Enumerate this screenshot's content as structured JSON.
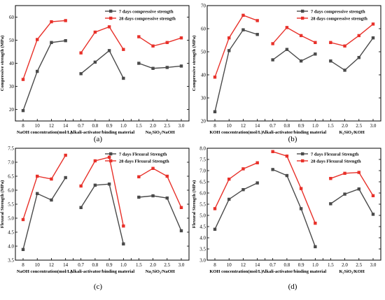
{
  "colors": {
    "series7": "#4a4a4a",
    "series28": "#e8312a",
    "axis": "#000000"
  },
  "chart_data": [
    {
      "type": "line",
      "panel_label": "(a)",
      "ylabel": "Compressive strength (MPa)",
      "ylim": [
        15,
        65
      ],
      "yticks": [
        "20",
        "30",
        "40",
        "50",
        "60"
      ],
      "legend_position": "top-right",
      "groups": [
        {
          "xlabel": "NaOH concentration(mol/L)",
          "categories": [
            "8",
            "10",
            "12",
            "14"
          ],
          "series": [
            {
              "name": "7 days compressive strength",
              "values": [
                19.5,
                36.5,
                49,
                49.8
              ]
            },
            {
              "name": "28 days compressive strength",
              "values": [
                33,
                50.3,
                58,
                58.5
              ]
            }
          ]
        },
        {
          "xlabel": "Alkali-activator/binding material",
          "categories": [
            "0.7",
            "0.8",
            "0.9",
            "1.0"
          ],
          "series": [
            {
              "name": "7 days compressive strength",
              "values": [
                35.5,
                40.5,
                45.5,
                33.5
              ]
            },
            {
              "name": "28 days compressive strength",
              "values": [
                44.5,
                53.5,
                55.8,
                46
              ]
            }
          ]
        },
        {
          "xlabel": "Na₂SiO₃/NaOH",
          "categories": [
            "1.5",
            "2.0",
            "2.5",
            "3.0"
          ],
          "series": [
            {
              "name": "7 days compressive strength",
              "values": [
                40,
                37.8,
                38.2,
                38.8
              ]
            },
            {
              "name": "28 days compressive strength",
              "values": [
                51.5,
                47.5,
                49,
                51
              ]
            }
          ]
        }
      ]
    },
    {
      "type": "line",
      "panel_label": "(b)",
      "ylabel": "Compressive strength (MPa)",
      "ylim": [
        20,
        70
      ],
      "yticks": [
        "20",
        "30",
        "40",
        "50",
        "60",
        "70"
      ],
      "legend_position": "top-right",
      "groups": [
        {
          "xlabel": "KOH concentration(mol/L)",
          "categories": [
            "8",
            "10",
            "12",
            "14"
          ],
          "series": [
            {
              "name": "7 days compressive strength",
              "values": [
                24,
                50.5,
                59.5,
                57.5
              ]
            },
            {
              "name": "28 days compressive strength",
              "values": [
                39,
                56,
                65.8,
                63.5
              ]
            }
          ]
        },
        {
          "xlabel": "Alkali-activator/binding material",
          "categories": [
            "0.7",
            "0.8",
            "0.9",
            "1.0"
          ],
          "series": [
            {
              "name": "7 days compressive strength",
              "values": [
                46.5,
                51,
                46,
                49
              ]
            },
            {
              "name": "28 days compressive strength",
              "values": [
                53.5,
                60.5,
                57,
                54
              ]
            }
          ]
        },
        {
          "xlabel": "K₂SiO₃/KOH",
          "categories": [
            "1.5",
            "2.0",
            "2.5",
            "3.0"
          ],
          "series": [
            {
              "name": "7 days compressive strength",
              "values": [
                46,
                42,
                47.5,
                56
              ]
            },
            {
              "name": "28 days compressive strength",
              "values": [
                54,
                52.5,
                57,
                62
              ]
            }
          ]
        }
      ]
    },
    {
      "type": "line",
      "panel_label": "(c)",
      "ylabel": "Flexural Strength (MPa)",
      "ylim": [
        3.5,
        7.5
      ],
      "yticks": [
        "3.5",
        "4.0",
        "4.5",
        "5.0",
        "5.5",
        "6.0",
        "6.5",
        "7.0",
        "7.5"
      ],
      "legend_position": "top-right",
      "groups": [
        {
          "xlabel": "NaOH concentration(mol/L)",
          "categories": [
            "8",
            "10",
            "12",
            "14"
          ],
          "series": [
            {
              "name": "7 days Flexural Strength",
              "values": [
                3.88,
                5.88,
                5.65,
                6.45
              ]
            },
            {
              "name": "28 days Flexural Strength",
              "values": [
                4.95,
                6.5,
                6.4,
                7.25
              ]
            }
          ]
        },
        {
          "xlabel": "Alkali-activator/binding material",
          "categories": [
            "0.7",
            "0.8",
            "0.9",
            "1.0"
          ],
          "series": [
            {
              "name": "7 days Flexural Strength",
              "values": [
                5.38,
                6.18,
                6.22,
                4.08
              ]
            },
            {
              "name": "28 days Flexural Strength",
              "values": [
                6.15,
                7.05,
                7.18,
                4.72
              ]
            }
          ]
        },
        {
          "xlabel": "Na₂SiO₃/NaOH",
          "categories": [
            "1.5",
            "2.0",
            "2.5",
            "3.0"
          ],
          "series": [
            {
              "name": "7 days Flexural Strength",
              "values": [
                5.75,
                5.8,
                5.72,
                4.55
              ]
            },
            {
              "name": "28 days Flexural Strength",
              "values": [
                6.48,
                6.78,
                6.5,
                5.38
              ]
            }
          ]
        }
      ]
    },
    {
      "type": "line",
      "panel_label": "(d)",
      "ylabel": "Flexural Strength (MPa)",
      "ylim": [
        3.0,
        8.0
      ],
      "yticks": [
        "3.0",
        "3.5",
        "4.0",
        "4.5",
        "5.0",
        "5.5",
        "6.0",
        "6.5",
        "7.0",
        "7.5",
        "8.0"
      ],
      "legend_position": "top-right",
      "groups": [
        {
          "xlabel": "KOH concentration(mol/L)",
          "categories": [
            "8",
            "10",
            "12",
            "14"
          ],
          "series": [
            {
              "name": "7 days Flexural Strength",
              "values": [
                4.38,
                5.72,
                6.15,
                6.45
              ]
            },
            {
              "name": "28 days Flexural Strength",
              "values": [
                5.3,
                6.62,
                7.08,
                7.35
              ]
            }
          ]
        },
        {
          "xlabel": "Alkali-activator/binding material",
          "categories": [
            "0.7",
            "0.8",
            "0.9",
            "1.0"
          ],
          "series": [
            {
              "name": "7 days Flexural Strength",
              "values": [
                7.05,
                6.78,
                5.3,
                3.6
              ]
            },
            {
              "name": "28 days Flexural Strength",
              "values": [
                7.85,
                7.65,
                6.2,
                4.65
              ]
            }
          ]
        },
        {
          "xlabel": "K₂SiO₃/KOH",
          "categories": [
            "1.5",
            "2.0",
            "2.5",
            "3.0"
          ],
          "series": [
            {
              "name": "7 days Flexural Strength",
              "values": [
                5.52,
                5.95,
                6.18,
                5.05
              ]
            },
            {
              "name": "28 days Flexural Strength",
              "values": [
                6.65,
                6.88,
                6.92,
                5.88
              ]
            }
          ]
        }
      ]
    }
  ]
}
